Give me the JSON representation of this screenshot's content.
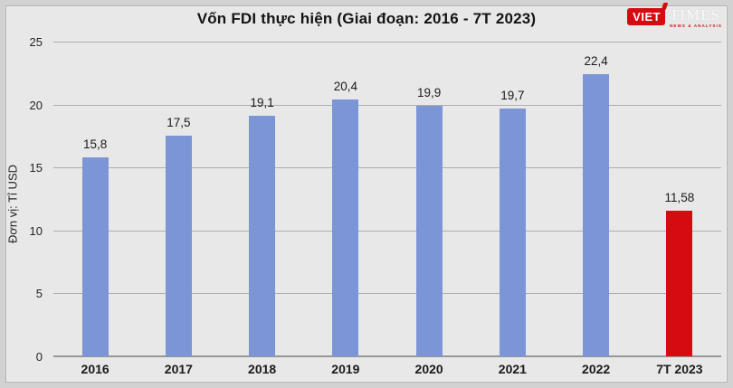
{
  "logo": {
    "viet": "VIET",
    "times": "TIMES",
    "tagline": "NEWS & ANALYSIS",
    "accent_color": "#d60b10"
  },
  "colors": {
    "bar_blue": "#7b95d7",
    "bar_red": "#d60b10",
    "background": "#e8e8e8",
    "gridline": "#aeaeae"
  },
  "chart_data": {
    "type": "bar",
    "title": "Vốn FDI thực hiện (Giai đoạn: 2016 - 7T 2023)",
    "categories": [
      "2016",
      "2017",
      "2018",
      "2019",
      "2020",
      "2021",
      "2022",
      "7T 2023"
    ],
    "values": [
      15.8,
      17.5,
      19.1,
      20.4,
      19.9,
      19.7,
      22.4,
      11.58
    ],
    "value_labels": [
      "15,8",
      "17,5",
      "19,1",
      "20,4",
      "19,9",
      "19,7",
      "22,4",
      "11,58"
    ],
    "bar_colors": [
      "#7b95d7",
      "#7b95d7",
      "#7b95d7",
      "#7b95d7",
      "#7b95d7",
      "#7b95d7",
      "#7b95d7",
      "#d60b10"
    ],
    "xlabel": "",
    "ylabel": "Đơn vị: Tỉ USD",
    "ylim": [
      0,
      25
    ],
    "yticks": [
      0,
      5,
      10,
      15,
      20,
      25
    ],
    "ytick_labels": [
      "0",
      "5",
      "10",
      "15",
      "20",
      "25"
    ],
    "grid": "horizontal",
    "legend": "none"
  }
}
